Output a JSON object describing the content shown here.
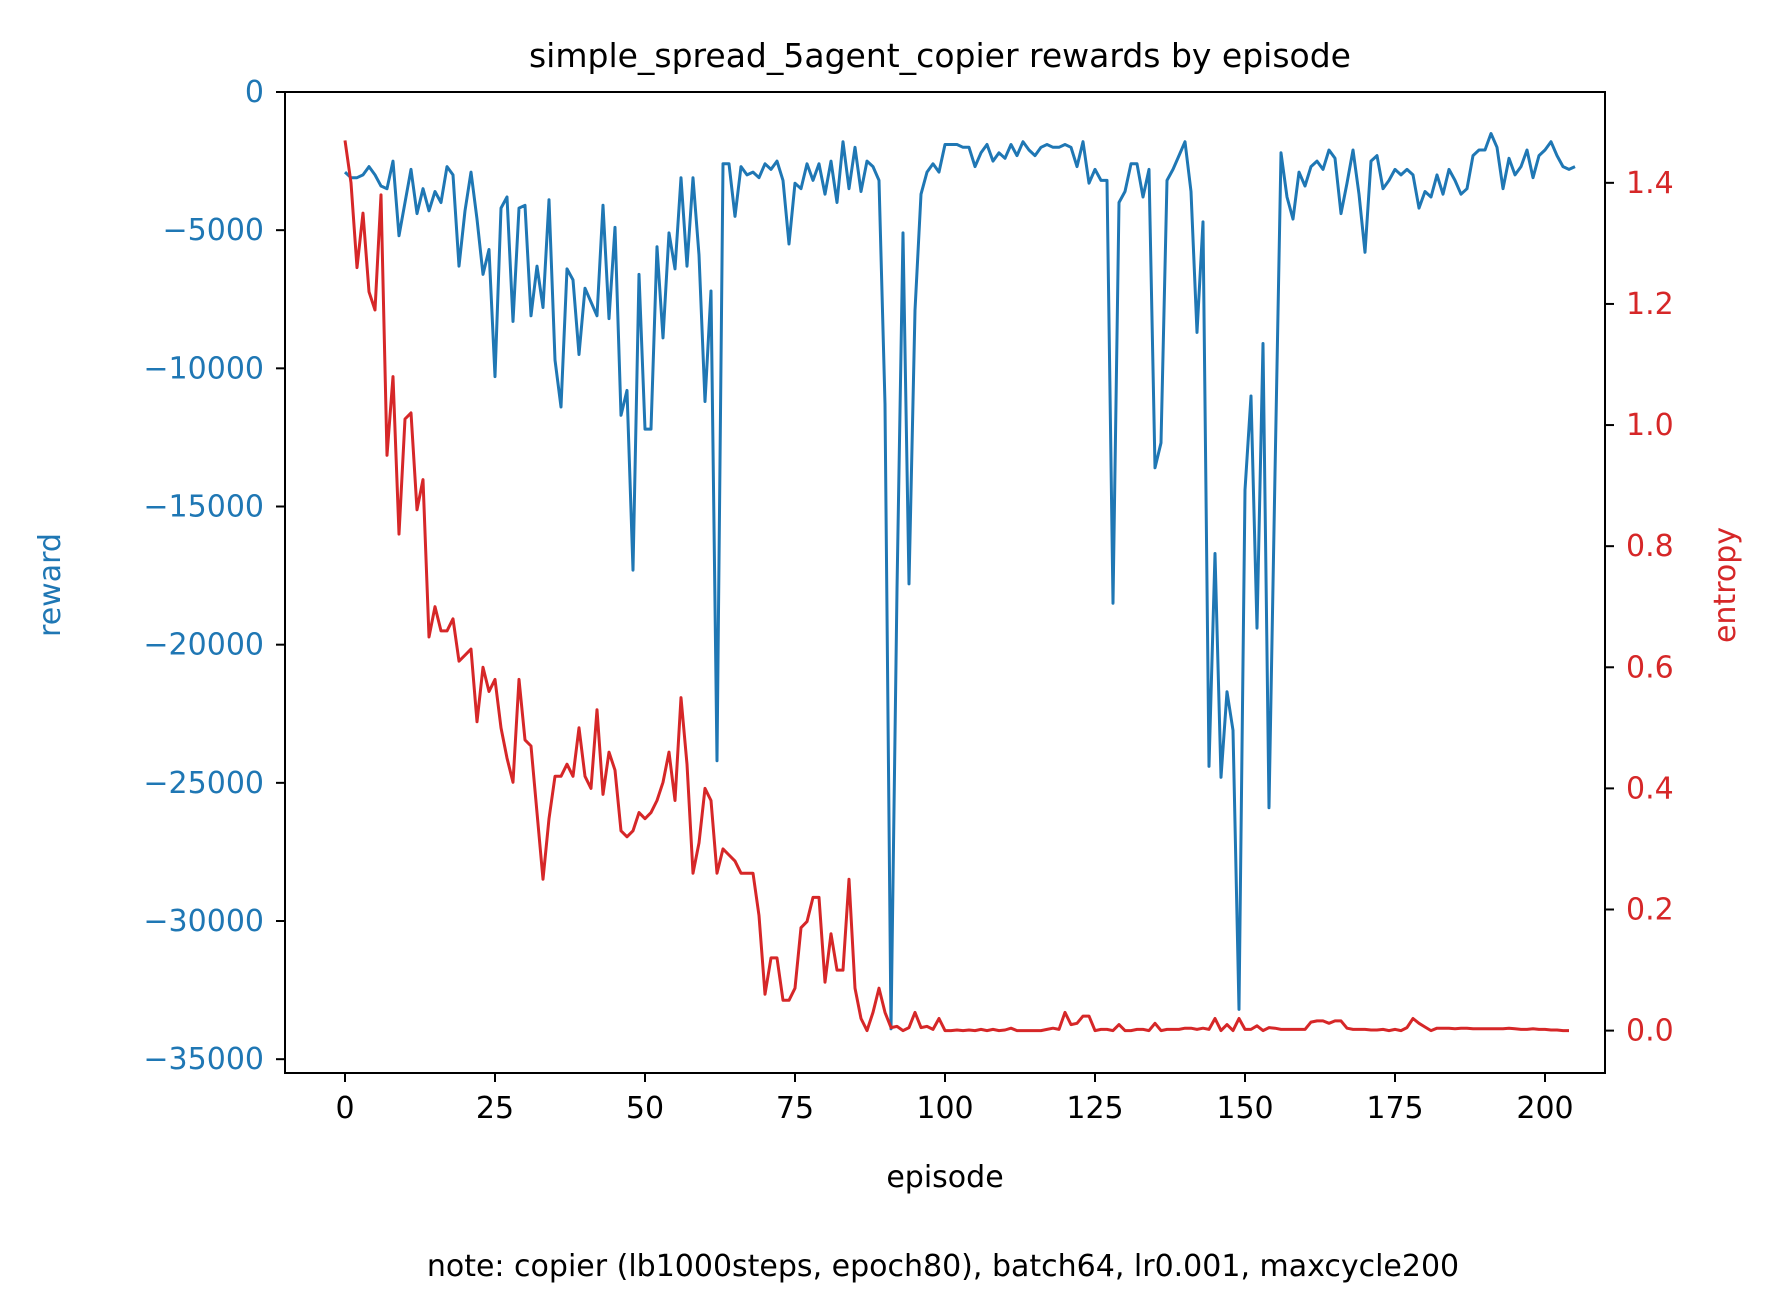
{
  "chart_data": {
    "type": "line",
    "title": "simple_spread_5agent_copier rewards by episode",
    "xlabel": "episode",
    "ylabel": "reward",
    "y2label": "entropy",
    "note": "note: copier (lb1000steps, epoch80), batch64, lr0.001, maxcycle200",
    "xlim": [
      -10,
      210
    ],
    "ylim": [
      -35500,
      0
    ],
    "y2lim": [
      -0.07,
      1.55
    ],
    "xticks": [
      0,
      25,
      50,
      75,
      100,
      125,
      150,
      175,
      200
    ],
    "yticks": [
      0,
      -5000,
      -10000,
      -15000,
      -20000,
      -25000,
      -30000,
      -35000
    ],
    "y2ticks": [
      0.0,
      0.2,
      0.4,
      0.6,
      0.8,
      1.0,
      1.2,
      1.4
    ],
    "grid": false,
    "colors": {
      "reward": "#1f77b4",
      "entropy": "#d62728"
    },
    "series": [
      {
        "axis": "left",
        "color": "#1f77b4",
        "values": [
          -2900,
          -3100,
          -3100,
          -3000,
          -2700,
          -3000,
          -3400,
          -3500,
          -2500,
          -5200,
          -4000,
          -2800,
          -4400,
          -3500,
          -4300,
          -3600,
          -4000,
          -2700,
          -3000,
          -6300,
          -4300,
          -2900,
          -4600,
          -6600,
          -5700,
          -10300,
          -4200,
          -3800,
          -8300,
          -4200,
          -4100,
          -8100,
          -6300,
          -7800,
          -3900,
          -9700,
          -11400,
          -6400,
          -6800,
          -9500,
          -7100,
          -7600,
          -8100,
          -4100,
          -8200,
          -4900,
          -11700,
          -10800,
          -17300,
          -6600,
          -12200,
          -12200,
          -5600,
          -8900,
          -5100,
          -6400,
          -3100,
          -6300,
          -3100,
          -5900,
          -11200,
          -7200,
          -24200,
          -2600,
          -2600,
          -4500,
          -2700,
          -3000,
          -2900,
          -3100,
          -2600,
          -2800,
          -2500,
          -3200,
          -5500,
          -3300,
          -3500,
          -2600,
          -3200,
          -2600,
          -3700,
          -2500,
          -4000,
          -1800,
          -3500,
          -2000,
          -3600,
          -2500,
          -2700,
          -3200,
          -11300,
          -33900,
          -18000,
          -5100,
          -17800,
          -7900,
          -3700,
          -2900,
          -2600,
          -2900,
          -1900,
          -1900,
          -1900,
          -2000,
          -2000,
          -2700,
          -2200,
          -1900,
          -2500,
          -2200,
          -2400,
          -1900,
          -2300,
          -1800,
          -2100,
          -2300,
          -2000,
          -1900,
          -2000,
          -2000,
          -1900,
          -2000,
          -2700,
          -1800,
          -3300,
          -2800,
          -3200,
          -3200,
          -18500,
          -4000,
          -3600,
          -2600,
          -2600,
          -3800,
          -2800,
          -13600,
          -12700,
          -3200,
          -2800,
          -2300,
          -1800,
          -3600,
          -8700,
          -4700,
          -24400,
          -16700,
          -24800,
          -21700,
          -23100,
          -33200,
          -14400,
          -11000,
          -19400,
          -9100,
          -25900,
          -13800,
          -2200,
          -3800,
          -4600,
          -2900,
          -3400,
          -2700,
          -2500,
          -2800,
          -2100,
          -2400,
          -4400,
          -3300,
          -2100,
          -3700,
          -5800,
          -2500,
          -2300,
          -3500,
          -3200,
          -2800,
          -3000,
          -2800,
          -3000,
          -4200,
          -3600,
          -3800,
          -3000,
          -3700,
          -2800,
          -3200,
          -3700,
          -3500,
          -2300,
          -2100,
          -2100,
          -1500,
          -2000,
          -3500,
          -2400,
          -3000,
          -2700,
          -2100,
          -3100,
          -2300,
          -2100,
          -1800,
          -2300,
          -2700,
          -2800,
          -2700
        ]
      },
      {
        "axis": "right",
        "color": "#d62728",
        "values": [
          1.47,
          1.4,
          1.26,
          1.35,
          1.22,
          1.19,
          1.38,
          0.95,
          1.08,
          0.82,
          1.01,
          1.02,
          0.86,
          0.91,
          0.65,
          0.7,
          0.66,
          0.66,
          0.68,
          0.61,
          0.62,
          0.63,
          0.51,
          0.6,
          0.56,
          0.58,
          0.5,
          0.45,
          0.41,
          0.58,
          0.48,
          0.47,
          0.36,
          0.25,
          0.35,
          0.42,
          0.42,
          0.44,
          0.42,
          0.5,
          0.42,
          0.4,
          0.53,
          0.39,
          0.46,
          0.43,
          0.33,
          0.32,
          0.33,
          0.36,
          0.35,
          0.36,
          0.38,
          0.41,
          0.46,
          0.38,
          0.55,
          0.44,
          0.26,
          0.31,
          0.4,
          0.38,
          0.26,
          0.3,
          0.29,
          0.28,
          0.26,
          0.26,
          0.26,
          0.19,
          0.06,
          0.12,
          0.12,
          0.05,
          0.05,
          0.07,
          0.17,
          0.18,
          0.22,
          0.22,
          0.08,
          0.16,
          0.1,
          0.1,
          0.25,
          0.07,
          0.02,
          0.0,
          0.03,
          0.07,
          0.03,
          0.005,
          0.007,
          0.0,
          0.005,
          0.03,
          0.005,
          0.007,
          0.002,
          0.02,
          0.0,
          0.0,
          0.001,
          0.0,
          0.001,
          0.0,
          0.002,
          0.0,
          0.002,
          0.0,
          0.001,
          0.004,
          0.0,
          0.0,
          0.0,
          0.0,
          0.0,
          0.002,
          0.004,
          0.002,
          0.03,
          0.01,
          0.012,
          0.024,
          0.024,
          0.0,
          0.002,
          0.002,
          0.0,
          0.01,
          0.0,
          0.0,
          0.002,
          0.002,
          0.0,
          0.012,
          0.0,
          0.002,
          0.002,
          0.002,
          0.004,
          0.004,
          0.002,
          0.004,
          0.002,
          0.02,
          0.0,
          0.01,
          0.0,
          0.02,
          0.002,
          0.002,
          0.008,
          0.0,
          0.005,
          0.004,
          0.002,
          0.002,
          0.002,
          0.002,
          0.002,
          0.014,
          0.016,
          0.016,
          0.012,
          0.016,
          0.016,
          0.004,
          0.002,
          0.002,
          0.002,
          0.001,
          0.001,
          0.002,
          0.0,
          0.002,
          0.0,
          0.005,
          0.02,
          0.012,
          0.006,
          0.0,
          0.004,
          0.004,
          0.004,
          0.003,
          0.004,
          0.004,
          0.003,
          0.003,
          0.003,
          0.003,
          0.003,
          0.003,
          0.004,
          0.003,
          0.002,
          0.002,
          0.003,
          0.002,
          0.002,
          0.001,
          0.001,
          0.0,
          0.0
        ]
      }
    ]
  }
}
